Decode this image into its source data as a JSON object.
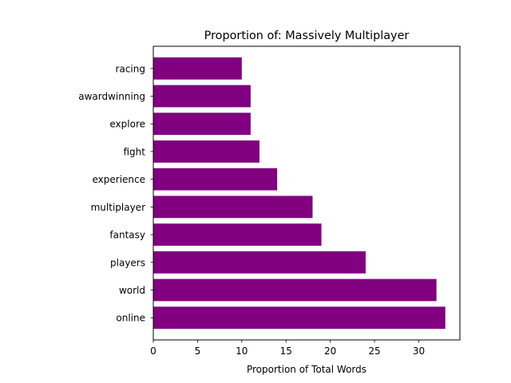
{
  "chart_data": {
    "type": "bar",
    "orientation": "horizontal",
    "title": "Proportion of: Massively Multiplayer",
    "xlabel": "Proportion of Total Words",
    "ylabel": "",
    "categories": [
      "online",
      "world",
      "players",
      "fantasy",
      "multiplayer",
      "experience",
      "fight",
      "explore",
      "awardwinning",
      "racing"
    ],
    "values": [
      33,
      32,
      24,
      19,
      18,
      14,
      12,
      11,
      11,
      10
    ],
    "xlim": [
      0,
      34.65
    ],
    "xticks": [
      0,
      5,
      10,
      15,
      20,
      25,
      30
    ],
    "grid": false,
    "bar_color": "#800080"
  }
}
